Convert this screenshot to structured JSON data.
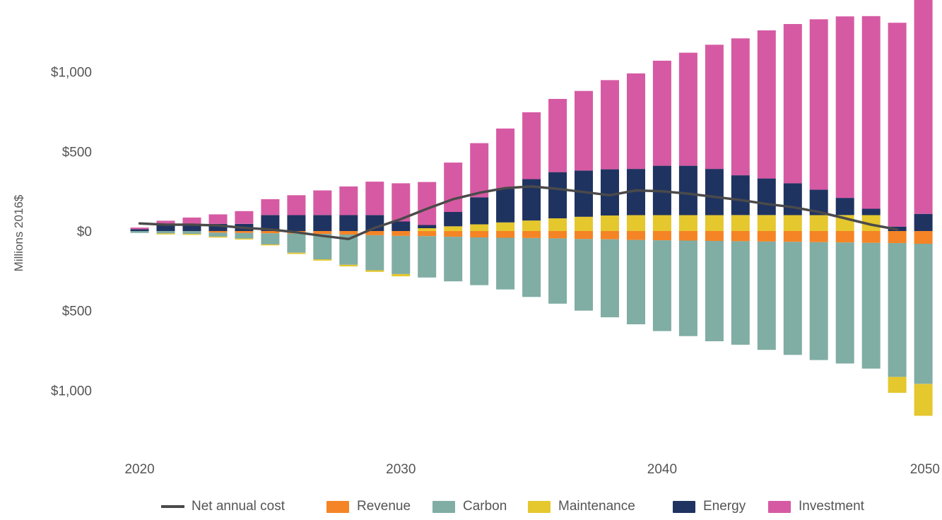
{
  "chart_data": {
    "type": "bar",
    "stacked": true,
    "ylabel": "Millions 2016$",
    "y_tick_labels": [
      "$1,000",
      "$500",
      "$0",
      "$500",
      "$1,000"
    ],
    "y_tick_values": [
      1000,
      500,
      0,
      -500,
      -1000
    ],
    "x_tick_labels": [
      "2020",
      "2030",
      "2040",
      "2050"
    ],
    "x_tick_values": [
      2020,
      2030,
      2040,
      2050
    ],
    "ylim": [
      -1300,
      1380
    ],
    "xlim": [
      2019.2,
      2050.2
    ],
    "legend_position": "bottom",
    "x": [
      2020,
      2021,
      2022,
      2023,
      2024,
      2025,
      2026,
      2027,
      2028,
      2029,
      2030,
      2031,
      2032,
      2033,
      2034,
      2035,
      2036,
      2037,
      2038,
      2039,
      2040,
      2041,
      2042,
      2043,
      2044,
      2045,
      2046,
      2047,
      2048,
      2049,
      2050
    ],
    "series": [
      {
        "name": "Revenue",
        "kind": "bar",
        "color": "#f58426",
        "values": [
          0,
          0,
          0,
          -10,
          -12,
          -14,
          -16,
          -18,
          -22,
          -26,
          -30,
          -32,
          -36,
          -40,
          -42,
          -44,
          -46,
          -50,
          -52,
          -56,
          -58,
          -60,
          -62,
          -64,
          -66,
          -68,
          -70,
          -72,
          -74,
          -76,
          -80
        ]
      },
      {
        "name": "Carbon",
        "kind": "bar",
        "color": "#80ada4",
        "values": [
          -12,
          -15,
          -18,
          -25,
          -35,
          -70,
          -120,
          -160,
          -190,
          -220,
          -240,
          -260,
          -280,
          -300,
          -325,
          -370,
          -410,
          -450,
          -490,
          -530,
          -570,
          -600,
          -630,
          -650,
          -680,
          -710,
          -740,
          -760,
          -790,
          -840,
          -880
        ]
      },
      {
        "name": "Maintenance",
        "kind": "bar",
        "color": "#e5c72e",
        "values": [
          0,
          -6,
          -6,
          -6,
          -6,
          -6,
          -8,
          -8,
          -10,
          -10,
          -14,
          18,
          30,
          42,
          54,
          66,
          80,
          90,
          98,
          100,
          100,
          100,
          100,
          100,
          100,
          100,
          100,
          100,
          100,
          -100,
          -200
        ]
      },
      {
        "name": "Energy",
        "kind": "bar",
        "color": "#1f3361",
        "values": [
          12,
          45,
          45,
          45,
          45,
          100,
          100,
          100,
          100,
          100,
          60,
          20,
          90,
          170,
          210,
          260,
          290,
          290,
          290,
          290,
          310,
          310,
          290,
          250,
          230,
          200,
          160,
          108,
          40,
          28,
          108
        ]
      },
      {
        "name": "Investment",
        "kind": "bar",
        "color": "#d65aa3",
        "values": [
          10,
          20,
          40,
          60,
          80,
          100,
          125,
          155,
          180,
          210,
          240,
          270,
          310,
          340,
          380,
          420,
          460,
          500,
          560,
          600,
          660,
          710,
          780,
          860,
          930,
          1000,
          1070,
          1140,
          1210,
          1280,
          1380
        ]
      },
      {
        "name": "Net annual cost",
        "kind": "line",
        "color": "#4a4a4a",
        "values": [
          48,
          40,
          40,
          35,
          20,
          10,
          -8,
          -30,
          -50,
          20,
          75,
          140,
          200,
          240,
          270,
          280,
          265,
          245,
          225,
          255,
          250,
          235,
          215,
          195,
          170,
          150,
          120,
          80,
          40,
          10,
          null
        ]
      }
    ],
    "legend_order": [
      "Net annual cost",
      "Revenue",
      "Carbon",
      "Maintenance",
      "Energy",
      "Investment"
    ]
  }
}
